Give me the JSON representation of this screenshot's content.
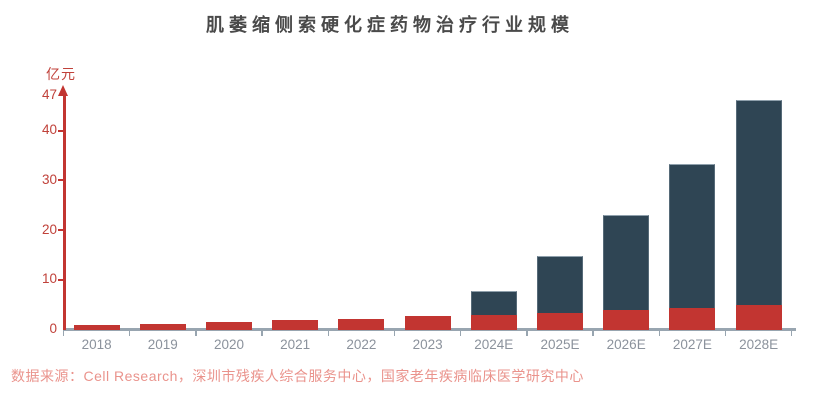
{
  "title": "肌萎缩侧索硬化症药物治疗行业规模",
  "y_axis": {
    "unit": "亿元",
    "tick_labels": [
      47,
      40,
      30,
      20,
      10,
      0
    ]
  },
  "source": "数据来源：Cell Research，深圳市残疾人综合服务中心，国家老年疾病临床医学研究中心",
  "colors": {
    "bar_red": "#c23531",
    "bar_navy": "#2f4554",
    "y_axis": "#c23531",
    "y_label": "#c0413a",
    "x_axis": "#98a5b0",
    "x_label": "#8b929c",
    "title": "#4a4a4a",
    "source": "#ea938c"
  },
  "chart_data": {
    "type": "bar",
    "stacked": true,
    "title": "肌萎缩侧索硬化症药物治疗行业规模",
    "xlabel": "",
    "ylabel": "亿元",
    "ylim": [
      0,
      47
    ],
    "y_ticks": [
      0,
      10,
      20,
      30,
      40,
      47
    ],
    "grid": false,
    "legend": "none",
    "categories": [
      "2018",
      "2019",
      "2020",
      "2021",
      "2022",
      "2023",
      "2024E",
      "2025E",
      "2026E",
      "2027E",
      "2028E"
    ],
    "series": [
      {
        "name": "lower-segment-red",
        "color": "#c23531",
        "values": [
          1.0,
          1.3,
          1.7,
          2.0,
          2.3,
          2.8,
          3.0,
          3.5,
          4.1,
          4.5,
          5.0
        ]
      },
      {
        "name": "upper-segment-navy",
        "color": "#2f4554",
        "values": [
          0,
          0,
          0,
          0,
          0,
          0,
          4.9,
          11.4,
          19.1,
          28.9,
          41.2
        ]
      }
    ],
    "totals": [
      1.0,
      1.3,
      1.7,
      2.0,
      2.3,
      2.8,
      7.9,
      14.9,
      23.2,
      33.4,
      46.2
    ]
  }
}
